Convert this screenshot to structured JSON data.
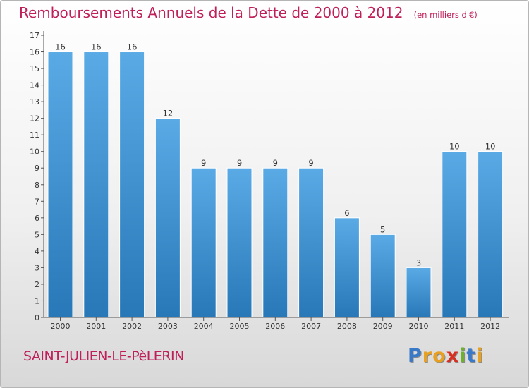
{
  "title": "Remboursements Annuels de la Dette de 2000 à 2012",
  "unit": "(en milliers d'€)",
  "commune": "SAINT-JULIEN-LE-PèLERIN",
  "logo": {
    "letters": [
      "P",
      "r",
      "o",
      "x",
      "i",
      "t",
      "i"
    ]
  },
  "colors": {
    "accent": "#c0205a",
    "bar_light": "#5aaae6",
    "bar_dark": "#2878b8",
    "logo": [
      "#3a78c8",
      "#e8a020",
      "#e8a020",
      "#d83020",
      "#70b030",
      "#3a78c8",
      "#e8a020"
    ]
  },
  "chart_data": {
    "type": "bar",
    "categories": [
      "2000",
      "2001",
      "2002",
      "2003",
      "2004",
      "2005",
      "2006",
      "2007",
      "2008",
      "2009",
      "2010",
      "2011",
      "2012"
    ],
    "values": [
      16,
      16,
      16,
      12,
      9,
      9,
      9,
      9,
      6,
      5,
      3,
      10,
      10
    ],
    "yticks": [
      0,
      1,
      2,
      3,
      4,
      5,
      6,
      7,
      8,
      9,
      10,
      11,
      12,
      13,
      14,
      15,
      16,
      17
    ],
    "ylim": [
      0,
      17
    ],
    "grid": false,
    "title": "Remboursements Annuels de la Dette de 2000 à 2012",
    "xlabel": "",
    "ylabel": ""
  }
}
